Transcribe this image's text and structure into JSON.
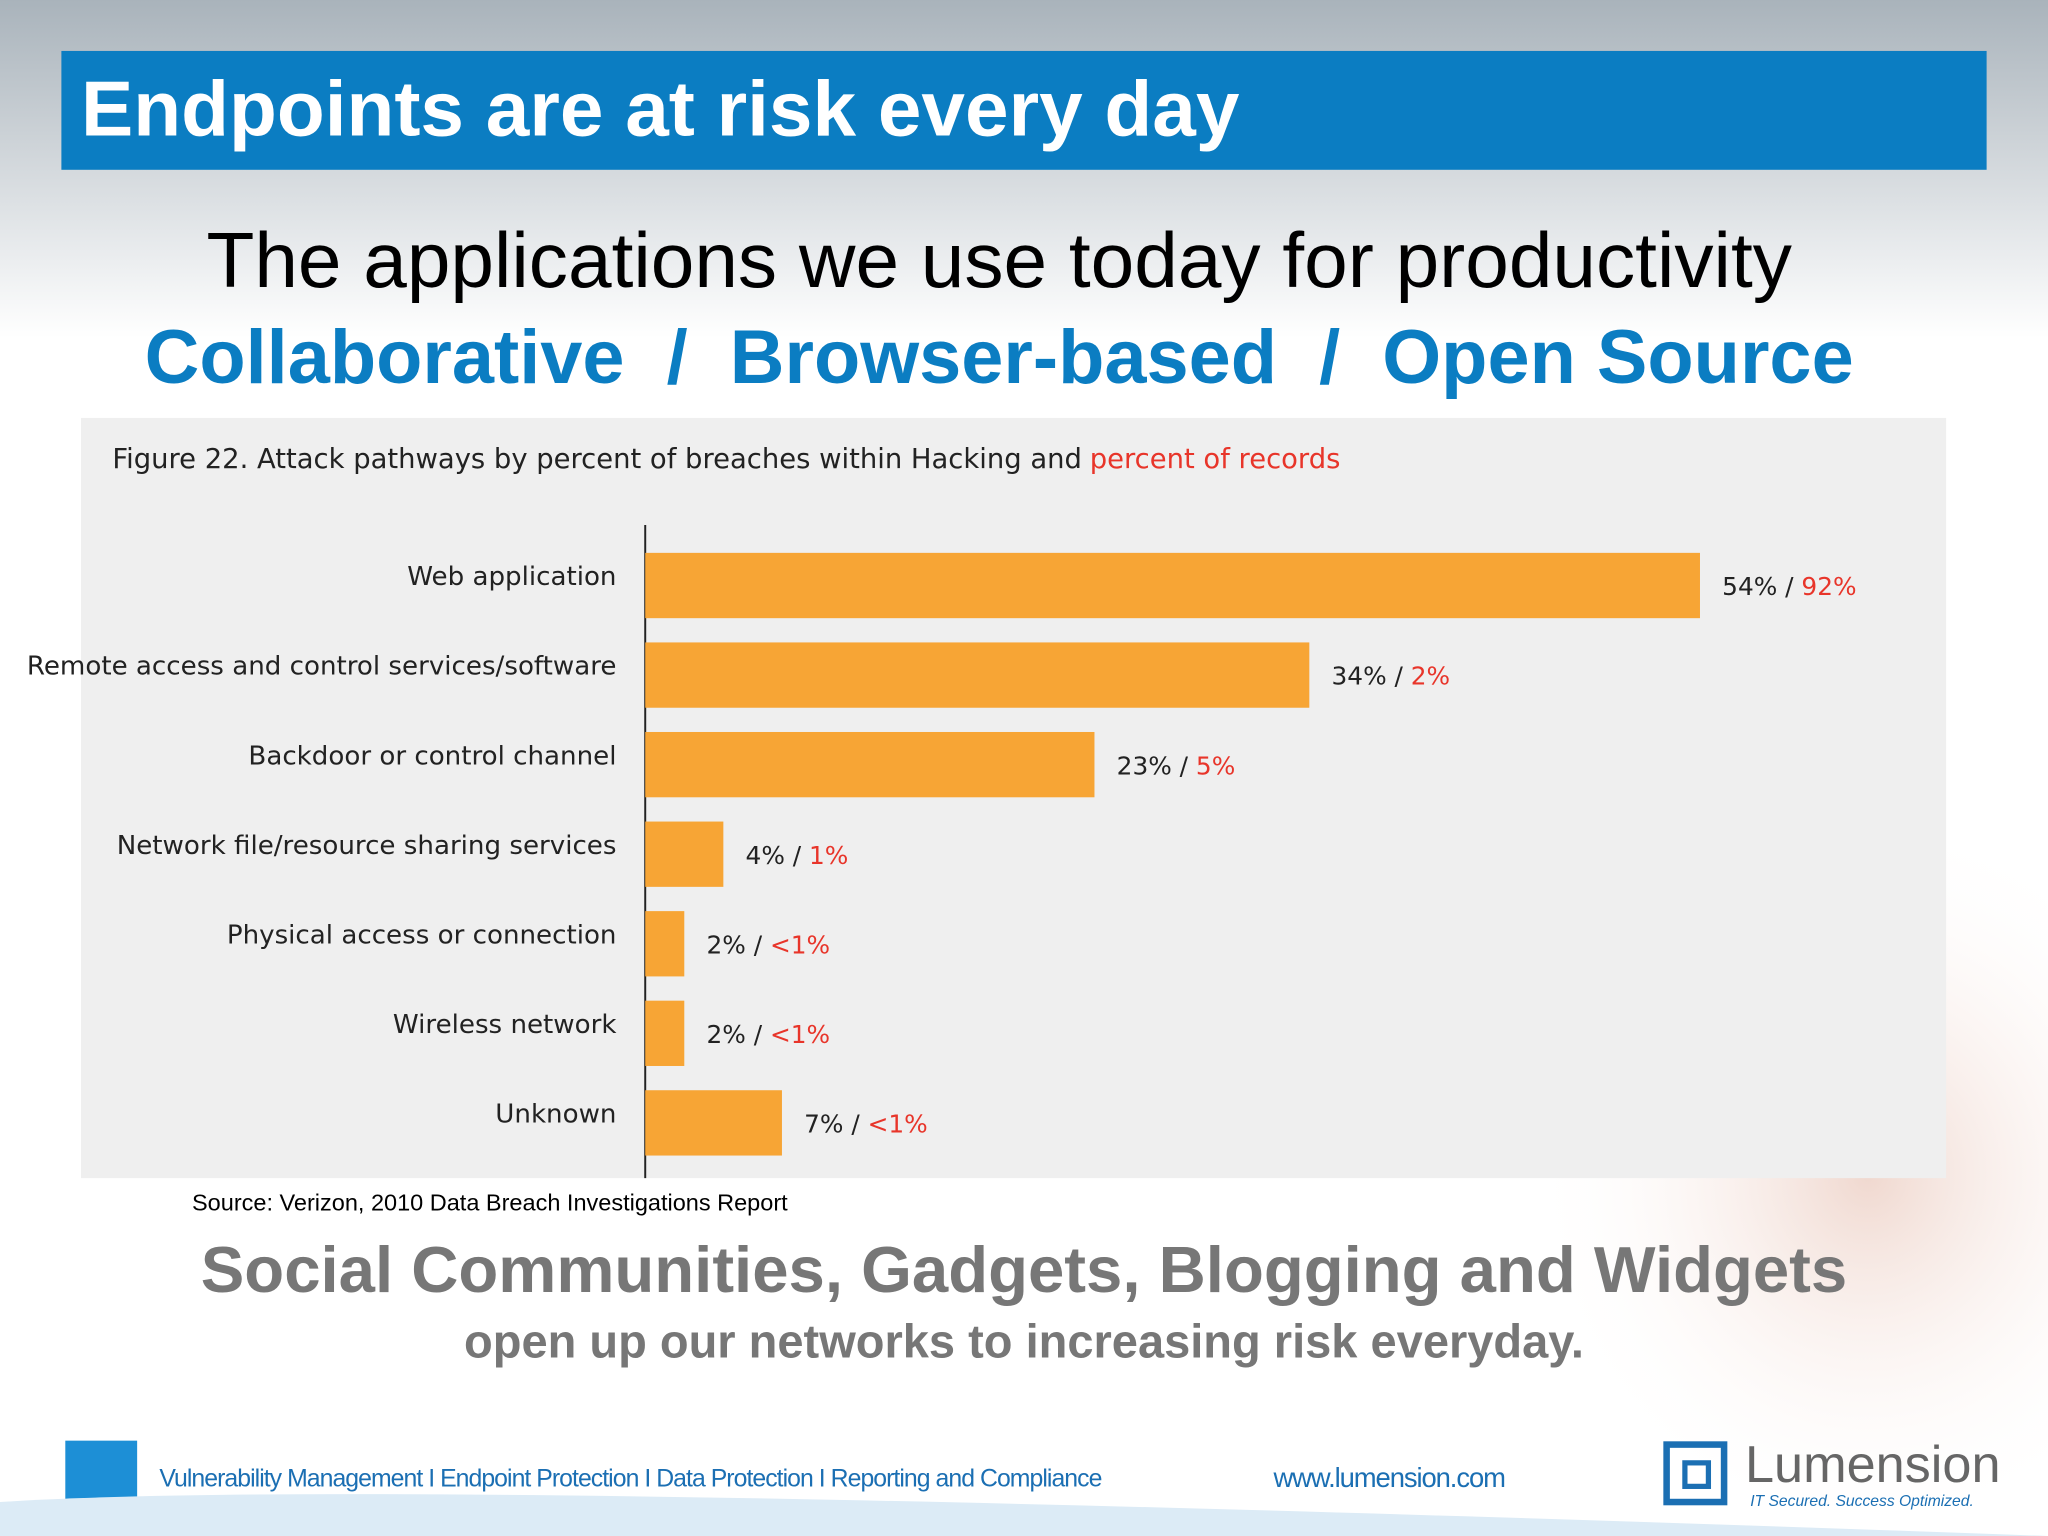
{
  "header": {
    "title": "Endpoints are at risk every day"
  },
  "subtitle": "The applications we use today for productivity",
  "tagline": "Collaborative  /  Browser-based  /  Open Source",
  "chart_data": {
    "type": "bar",
    "orientation": "horizontal",
    "title": "Figure 22. Attack pathways by percent of breaches within Hacking and",
    "title_highlight": "percent of records",
    "categories": [
      "Web application",
      "Remote access and control services/software",
      "Backdoor or control channel",
      "Network file/resource sharing services",
      "Physical access or connection",
      "Wireless network",
      "Unknown"
    ],
    "values": [
      54,
      34,
      23,
      4,
      2,
      2,
      7
    ],
    "value_labels": [
      "54%",
      "34%",
      "23%",
      "4%",
      "2%",
      "2%",
      "7%"
    ],
    "label_separator": " / ",
    "record_labels": [
      "92%",
      "2%",
      "5%",
      "1%",
      "<1%",
      "<1%",
      "<1%"
    ],
    "color": "#f7a535",
    "highlight_color": "#e8352a",
    "xlim": [
      0,
      66
    ]
  },
  "source": "Source: Verizon, 2010 Data Breach Investigations Report",
  "closing": {
    "headline": "Social Communities, Gadgets, Blogging and Widgets",
    "subline": "open up our networks to increasing risk everyday."
  },
  "footer": {
    "links": "Vulnerability Management I Endpoint Protection I Data Protection I Reporting and Compliance",
    "url": "www.lumension.com",
    "logo": "Lumension",
    "logo_tagline": "IT Secured. Success Optimized."
  }
}
